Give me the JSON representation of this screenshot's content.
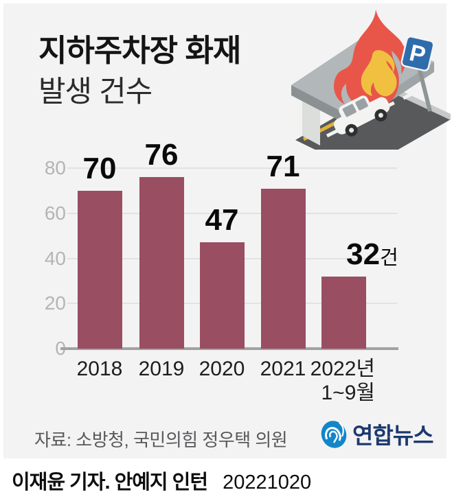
{
  "header": {
    "title_line1": "지하주차장 화재",
    "title_line2": "발생 건수"
  },
  "chart_data": {
    "type": "bar",
    "title": "지하주차장 화재 발생 건수",
    "categories": [
      [
        "2018"
      ],
      [
        "2019"
      ],
      [
        "2020"
      ],
      [
        "2021"
      ],
      [
        "2022년",
        "1~9월"
      ]
    ],
    "values": [
      70,
      76,
      47,
      71,
      32
    ],
    "value_labels": [
      "70",
      "76",
      "47",
      "71",
      "32"
    ],
    "last_value_suffix": "건",
    "yticks": [
      0,
      20,
      40,
      60,
      80
    ],
    "ylim": [
      0,
      80
    ],
    "xlabel": "",
    "ylabel": "",
    "grid": true,
    "legend": "none",
    "bar_color": "#9a4e61",
    "gridline_color": "#e3e2e3",
    "baseline_color": "#a2a1a2",
    "ytick_color": "#b5b4b5"
  },
  "source": {
    "label": "자료: 소방청, 국민의힘 정우택 의원"
  },
  "logo": {
    "icon": "yonhap-globe-icon",
    "icon_color": "#1286c8",
    "text": "연합뉴스",
    "text_color": "#1c3a6e"
  },
  "footer": {
    "credit": "이재윤 기자. 안예지 인턴",
    "date": "20221020"
  },
  "illustration": {
    "icon": "underground-parking-fire-illustration",
    "flame_color": "#e8564a",
    "flame_inner_color": "#f2c040",
    "sign_color": "#2e6cac"
  }
}
